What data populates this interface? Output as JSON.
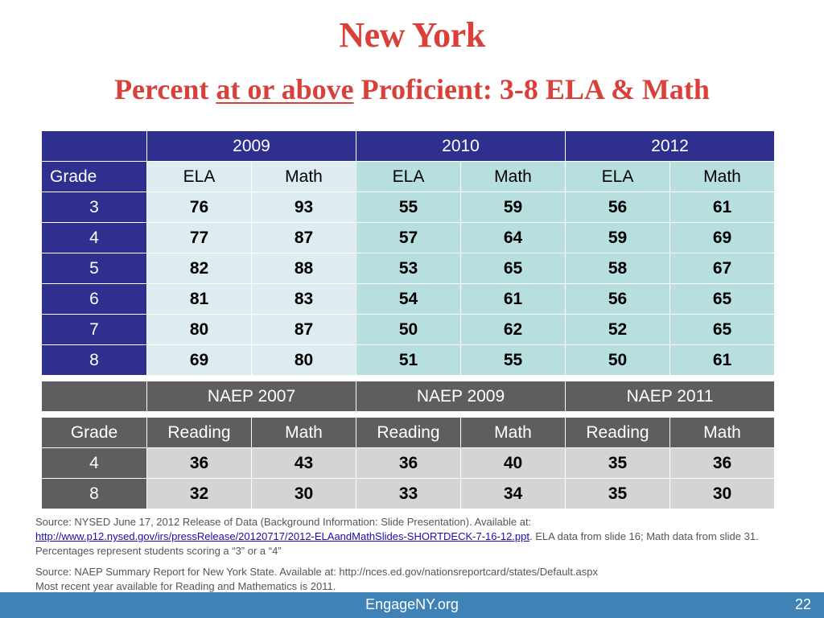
{
  "title": "New York",
  "subtitle": {
    "part1": "Percent ",
    "underlined": "at or above",
    "part2": " Proficient: 3-8 ELA & Math"
  },
  "ela_table": {
    "years": [
      "2009",
      "2010",
      "2012"
    ],
    "grade_label": "Grade",
    "subjects": [
      "ELA",
      "Math",
      "ELA",
      "Math",
      "ELA",
      "Math"
    ],
    "rows": [
      {
        "grade": "3",
        "values": [
          "76",
          "93",
          "55",
          "59",
          "56",
          "61"
        ]
      },
      {
        "grade": "4",
        "values": [
          "77",
          "87",
          "57",
          "64",
          "59",
          "69"
        ]
      },
      {
        "grade": "5",
        "values": [
          "82",
          "88",
          "53",
          "65",
          "58",
          "67"
        ]
      },
      {
        "grade": "6",
        "values": [
          "81",
          "83",
          "54",
          "61",
          "56",
          "65"
        ]
      },
      {
        "grade": "7",
        "values": [
          "80",
          "87",
          "50",
          "62",
          "52",
          "65"
        ]
      },
      {
        "grade": "8",
        "values": [
          "69",
          "80",
          "51",
          "55",
          "50",
          "61"
        ]
      }
    ]
  },
  "naep_table": {
    "years": [
      "NAEP 2007",
      "NAEP 2009",
      "NAEP 2011"
    ],
    "grade_label": "Grade",
    "subjects": [
      "Reading",
      "Math",
      "Reading",
      "Math",
      "Reading",
      "Math"
    ],
    "rows": [
      {
        "grade": "4",
        "values": [
          "36",
          "43",
          "36",
          "40",
          "35",
          "36"
        ]
      },
      {
        "grade": "8",
        "values": [
          "32",
          "30",
          "33",
          "34",
          "35",
          "30"
        ]
      }
    ]
  },
  "source1": {
    "line1": "Source: NYSED June 17, 2012 Release of Data (Background Information: Slide Presentation).  Available at:",
    "link": "http://www.p12.nysed.gov/irs/pressRelease/20120717/2012-ELAandMathSlides-SHORTDECK-7-16-12.ppt",
    "after_link": ". ELA data from slide 16; Math data from slide 31.  Percentages represent students scoring a “3” or a “4”"
  },
  "source2": {
    "line1": "Source: NAEP Summary Report for New York State.  Available at: http://nces.ed.gov/nationsreportcard/states/Default.aspx",
    "line2": "Most recent year available for Reading and Mathematics is 2011."
  },
  "footer": {
    "site": "EngageNY.org",
    "page_number": "22"
  },
  "colors": {
    "title_red": "#d9403a",
    "header_blue": "#2e2f8f",
    "naep_gray": "#5e5e5e",
    "cell_light_a": "#dcecf0",
    "cell_light_b": "#b8dfe0",
    "footer_blue": "#3f82b5"
  }
}
